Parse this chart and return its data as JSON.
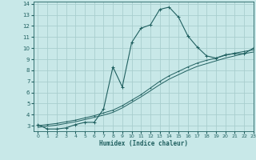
{
  "xlabel": "Humidex (Indice chaleur)",
  "background_color": "#c8e8e8",
  "grid_color": "#a8cece",
  "line_color": "#206060",
  "xlim": [
    -0.5,
    23
  ],
  "ylim": [
    2.5,
    14.2
  ],
  "xticks": [
    0,
    1,
    2,
    3,
    4,
    5,
    6,
    7,
    8,
    9,
    10,
    11,
    12,
    13,
    14,
    15,
    16,
    17,
    18,
    19,
    20,
    21,
    22,
    23
  ],
  "yticks": [
    3,
    4,
    5,
    6,
    7,
    8,
    9,
    10,
    11,
    12,
    13,
    14
  ],
  "curve1_x": [
    0,
    1,
    2,
    3,
    4,
    5,
    6,
    7,
    8,
    9,
    10,
    11,
    12,
    13,
    14,
    15,
    16,
    17,
    18,
    19,
    20,
    21,
    22,
    23
  ],
  "curve1_y": [
    3.1,
    2.7,
    2.7,
    2.8,
    3.1,
    3.3,
    3.3,
    4.5,
    8.3,
    6.5,
    10.5,
    11.8,
    12.1,
    13.5,
    13.7,
    12.8,
    11.1,
    10.1,
    9.3,
    9.1,
    9.4,
    9.5,
    9.5,
    10.0
  ],
  "curve2_x": [
    0,
    1,
    2,
    3,
    4,
    5,
    6,
    7,
    8,
    9,
    10,
    11,
    12,
    13,
    14,
    15,
    16,
    17,
    18,
    19,
    20,
    21,
    22,
    23
  ],
  "curve2_y": [
    3.0,
    3.1,
    3.2,
    3.35,
    3.5,
    3.7,
    3.9,
    4.15,
    4.4,
    4.8,
    5.3,
    5.8,
    6.4,
    7.0,
    7.5,
    7.9,
    8.3,
    8.65,
    8.9,
    9.1,
    9.35,
    9.55,
    9.7,
    9.85
  ],
  "curve3_x": [
    0,
    1,
    2,
    3,
    4,
    5,
    6,
    7,
    8,
    9,
    10,
    11,
    12,
    13,
    14,
    15,
    16,
    17,
    18,
    19,
    20,
    21,
    22,
    23
  ],
  "curve3_y": [
    2.85,
    2.95,
    3.05,
    3.2,
    3.35,
    3.55,
    3.75,
    3.95,
    4.2,
    4.6,
    5.1,
    5.6,
    6.15,
    6.7,
    7.2,
    7.6,
    8.0,
    8.35,
    8.6,
    8.85,
    9.1,
    9.3,
    9.5,
    9.65
  ]
}
